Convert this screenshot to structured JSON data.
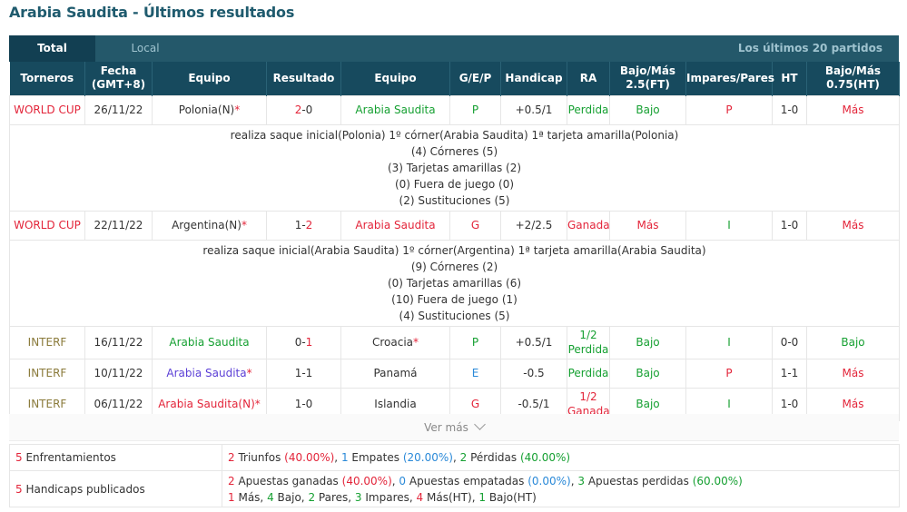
{
  "page_title": "Arabia Saudita - Últimos resultados",
  "tabs": {
    "total": "Total",
    "local": "Local",
    "right": "Los últimos 20 partidos"
  },
  "headers": [
    "Torneros",
    "Fecha\n(GMT+8)",
    "Equipo",
    "Resultado",
    "Equipo",
    "G/E/P",
    "Handicap",
    "RA",
    "Bajo/Más\n2.5(FT)",
    "Impares/Pares",
    "HT",
    "Bajo/Más\n0.75(HT)"
  ],
  "matches": [
    {
      "tournament": "WORLD CUP",
      "date": "26/11/22",
      "home": "Polonia(N)",
      "home_star": "*",
      "score_home": "2",
      "score_sep": "-",
      "score_away": "0",
      "away": "Arabia Saudita",
      "away_star": "",
      "gep": "P",
      "handicap": "+0.5/1",
      "ra": "Perdida",
      "ou": "Bajo",
      "oe": "P",
      "ht": "1-0",
      "ou_ht": "Más",
      "details": [
        "realiza saque inicial(Polonia)  1º córner(Arabia Saudita)  1ª tarjeta amarilla(Polonia)",
        "(4) Córneres (5)",
        "(3) Tarjetas amarillas (2)",
        "(0) Fuera de juego (0)",
        "(2) Sustituciones (5)"
      ]
    },
    {
      "tournament": "WORLD CUP",
      "date": "22/11/22",
      "home": "Argentina(N)",
      "home_star": "*",
      "score_home": "1",
      "score_sep": "-",
      "score_away": "2",
      "away": "Arabia Saudita",
      "away_star": "",
      "gep": "G",
      "handicap": "+2/2.5",
      "ra": "Ganada",
      "ou": "Más",
      "oe": "I",
      "ht": "1-0",
      "ou_ht": "Más",
      "details": [
        "realiza saque inicial(Arabia Saudita)  1º córner(Argentina)  1ª tarjeta amarilla(Arabia Saudita)",
        "(9) Córneres (2)",
        "(0) Tarjetas amarillas (6)",
        "(10) Fuera de juego (1)",
        "(4) Sustituciones (5)"
      ]
    },
    {
      "tournament": "INTERF",
      "date": "16/11/22",
      "home": "Arabia Saudita",
      "home_star": "",
      "score_home": "0",
      "score_sep": "-",
      "score_away": "1",
      "away": "Croacia",
      "away_star": "*",
      "gep": "P",
      "handicap": "+0.5/1",
      "ra_line1": "1/2",
      "ra_line2": "Perdida",
      "ou": "Bajo",
      "oe": "I",
      "ht": "0-0",
      "ou_ht": "Bajo"
    },
    {
      "tournament": "INTERF",
      "date": "10/11/22",
      "home": "Arabia Saudita",
      "home_star": "*",
      "score_home": "1",
      "score_sep": "-",
      "score_away": "1",
      "away": "Panamá",
      "away_star": "",
      "gep": "E",
      "handicap": "-0.5",
      "ra": "Perdida",
      "ou": "Bajo",
      "oe": "P",
      "ht": "1-1",
      "ou_ht": "Más"
    },
    {
      "tournament": "INTERF",
      "date": "06/11/22",
      "home": "Arabia Saudita(N)",
      "home_star": "*",
      "score_home": "1",
      "score_sep": "-",
      "score_away": "0",
      "away": "Islandia",
      "away_star": "",
      "gep": "G",
      "handicap": "-0.5/1",
      "ra_line1": "1/2",
      "ra_line2": "Ganada",
      "ou": "Bajo",
      "oe": "I",
      "ht": "1-0",
      "ou_ht": "Más"
    }
  ],
  "ver_mas": "Ver más",
  "summary": {
    "enfrentamientos": {
      "count": "5",
      "label": "Enfrentamientos",
      "wins": "2",
      "wins_label": "Triunfos",
      "wins_pct": "(40.00%)",
      "draws": "1",
      "draws_label": "Empates",
      "draws_pct": "(20.00%)",
      "losses": "2",
      "losses_label": "Pérdidas",
      "losses_pct": "(40.00%)"
    },
    "handicaps": {
      "count": "5",
      "label": "Handicaps publicados",
      "won": "2",
      "won_label": "Apuestas ganadas",
      "won_pct": "(40.00%)",
      "push": "0",
      "push_label": "Apuestas empatadas",
      "push_pct": "(0.00%)",
      "lost": "3",
      "lost_label": "Apuestas perdidas",
      "lost_pct": "(60.00%)",
      "mas": "1",
      "mas_label": "Más,",
      "bajo": "4",
      "bajo_label": "Bajo,",
      "pares": "2",
      "pares_label": "Pares,",
      "impares": "3",
      "impares_label": "Impares,",
      "mas_ht": "4",
      "mas_ht_label": "Más(HT),",
      "bajo_ht": "1",
      "bajo_ht_label": "Bajo(HT)"
    }
  },
  "colors": {
    "header_bg": "#174a5e",
    "tab_bg": "#24586a",
    "title": "#1f5b6e",
    "red": "#e3253a",
    "green": "#16a032",
    "blue": "#2a89d8"
  }
}
